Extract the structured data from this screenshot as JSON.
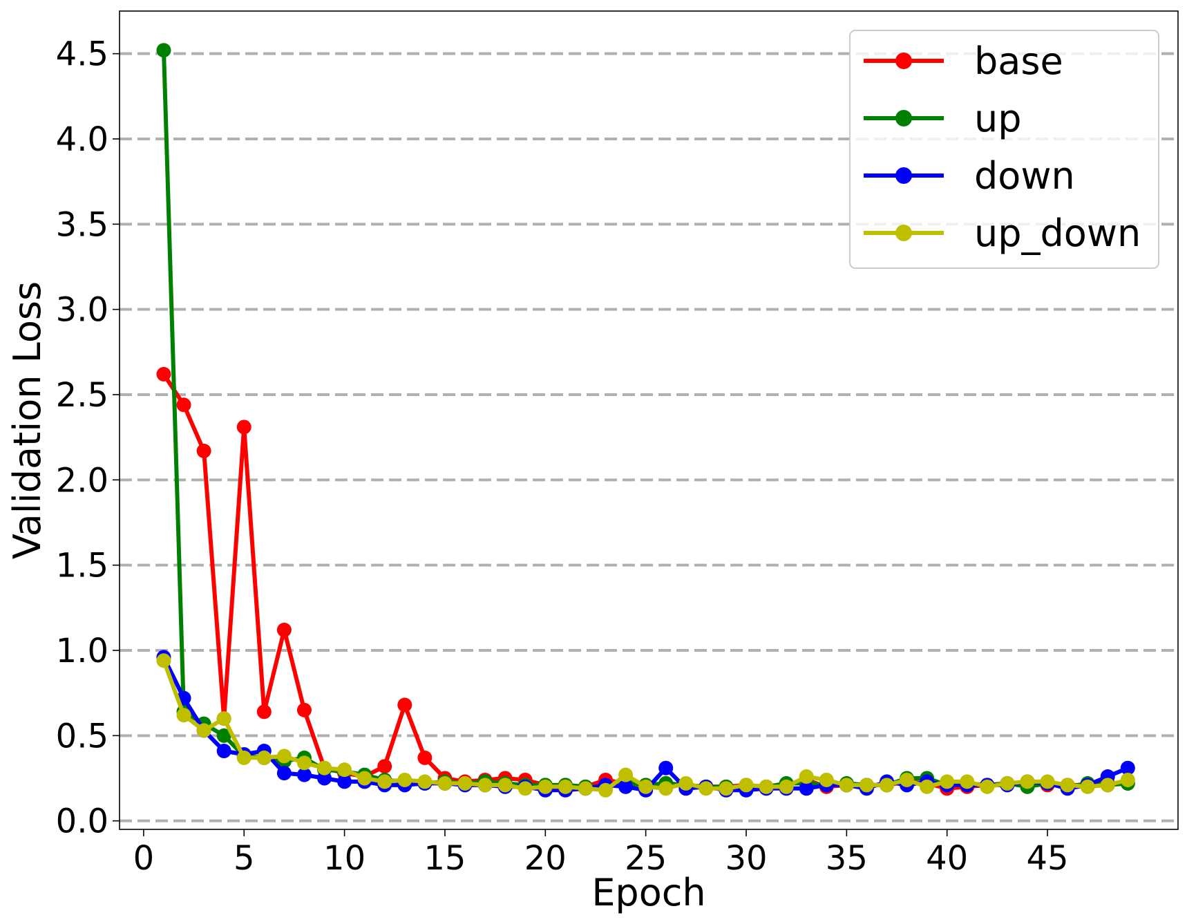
{
  "chart_data": {
    "type": "line",
    "xlabel": "Epoch",
    "ylabel": "Validation Loss",
    "xlim": [
      -1.2,
      51.5
    ],
    "ylim": [
      -0.05,
      4.75
    ],
    "xticks": [
      0,
      5,
      10,
      15,
      20,
      25,
      30,
      35,
      40,
      45
    ],
    "yticks": [
      0.0,
      0.5,
      1.0,
      1.5,
      2.0,
      2.5,
      3.0,
      3.5,
      4.0,
      4.5
    ],
    "xtick_labels": [
      "0",
      "5",
      "10",
      "15",
      "20",
      "25",
      "30",
      "35",
      "40",
      "45"
    ],
    "ytick_labels": [
      "0.0",
      "0.5",
      "1.0",
      "1.5",
      "2.0",
      "2.5",
      "3.0",
      "3.5",
      "4.0",
      "4.5"
    ],
    "grid": "horizontal dashed",
    "legend_position": "top-right",
    "x": [
      1,
      2,
      3,
      4,
      5,
      6,
      7,
      8,
      9,
      10,
      11,
      12,
      13,
      14,
      15,
      16,
      17,
      18,
      19,
      20,
      21,
      22,
      23,
      24,
      25,
      26,
      27,
      28,
      29,
      30,
      31,
      32,
      33,
      34,
      35,
      36,
      37,
      38,
      39,
      40,
      41,
      42,
      43,
      44,
      45,
      46,
      47,
      48,
      49
    ],
    "series": [
      {
        "name": "base",
        "color": "#ff0000",
        "values": [
          2.62,
          2.44,
          2.17,
          0.6,
          2.31,
          0.64,
          1.12,
          0.65,
          0.31,
          0.28,
          0.26,
          0.32,
          0.68,
          0.37,
          0.25,
          0.23,
          0.24,
          0.25,
          0.24,
          0.21,
          0.21,
          0.2,
          0.24,
          0.22,
          0.21,
          0.22,
          0.21,
          0.2,
          0.2,
          0.21,
          0.2,
          0.21,
          0.24,
          0.2,
          0.21,
          0.21,
          0.21,
          0.23,
          0.22,
          0.19,
          0.2,
          0.21,
          0.22,
          0.22,
          0.21,
          0.21,
          0.21,
          0.22,
          0.22
        ]
      },
      {
        "name": "up",
        "color": "#008000",
        "values": [
          4.52,
          0.64,
          0.57,
          0.5,
          0.38,
          0.37,
          0.35,
          0.37,
          0.3,
          0.29,
          0.27,
          0.24,
          0.23,
          0.22,
          0.23,
          0.22,
          0.23,
          0.22,
          0.21,
          0.21,
          0.21,
          0.2,
          0.2,
          0.22,
          0.21,
          0.22,
          0.21,
          0.2,
          0.2,
          0.2,
          0.2,
          0.22,
          0.22,
          0.21,
          0.22,
          0.21,
          0.21,
          0.25,
          0.25,
          0.21,
          0.22,
          0.21,
          0.22,
          0.2,
          0.22,
          0.2,
          0.22,
          0.21,
          0.22
        ]
      },
      {
        "name": "down",
        "color": "#0000ff",
        "values": [
          0.96,
          0.72,
          0.53,
          0.41,
          0.39,
          0.41,
          0.28,
          0.27,
          0.25,
          0.23,
          0.23,
          0.21,
          0.21,
          0.22,
          0.22,
          0.21,
          0.21,
          0.2,
          0.2,
          0.18,
          0.18,
          0.19,
          0.21,
          0.2,
          0.18,
          0.31,
          0.19,
          0.2,
          0.18,
          0.18,
          0.19,
          0.19,
          0.19,
          0.21,
          0.21,
          0.19,
          0.23,
          0.21,
          0.23,
          0.21,
          0.21,
          0.21,
          0.21,
          0.23,
          0.22,
          0.19,
          0.21,
          0.26,
          0.31
        ]
      },
      {
        "name": "up_down",
        "color": "#bfbf00",
        "values": [
          0.94,
          0.62,
          0.53,
          0.6,
          0.37,
          0.37,
          0.38,
          0.34,
          0.31,
          0.3,
          0.25,
          0.23,
          0.24,
          0.23,
          0.22,
          0.22,
          0.21,
          0.21,
          0.19,
          0.2,
          0.2,
          0.19,
          0.18,
          0.27,
          0.2,
          0.19,
          0.22,
          0.19,
          0.19,
          0.21,
          0.2,
          0.2,
          0.26,
          0.24,
          0.21,
          0.21,
          0.21,
          0.24,
          0.2,
          0.23,
          0.23,
          0.2,
          0.22,
          0.23,
          0.23,
          0.21,
          0.2,
          0.21,
          0.24
        ]
      }
    ]
  }
}
